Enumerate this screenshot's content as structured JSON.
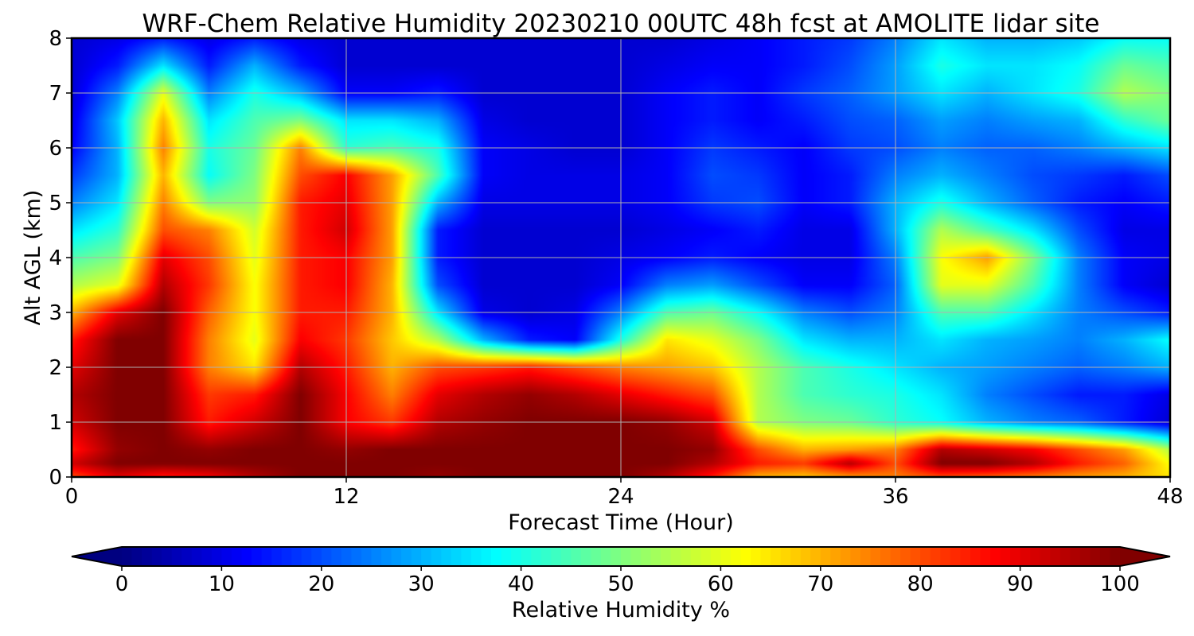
{
  "chart_data": {
    "type": "heatmap",
    "title": "WRF-Chem Relative Humidity 20230210 00UTC 48h fcst at AMOLITE lidar site",
    "xlabel": "Forecast Time (Hour)",
    "ylabel": "Alt AGL (km)",
    "xlim": [
      0,
      48
    ],
    "ylim": [
      0,
      8
    ],
    "xticks": [
      0,
      12,
      24,
      36,
      48
    ],
    "yticks": [
      0,
      1,
      2,
      3,
      4,
      5,
      6,
      7,
      8
    ],
    "grid": true,
    "colormap": "jet",
    "colorbar": {
      "label": "Relative Humidity %",
      "range": [
        0,
        100
      ],
      "ticks": [
        0,
        10,
        20,
        30,
        40,
        50,
        60,
        70,
        80,
        90,
        100
      ],
      "extend": "both",
      "orientation": "horizontal"
    },
    "x": [
      0,
      2,
      4,
      6,
      8,
      10,
      12,
      14,
      16,
      18,
      20,
      22,
      24,
      26,
      28,
      30,
      32,
      34,
      36,
      38,
      40,
      42,
      44,
      46,
      48
    ],
    "y": [
      0,
      0.25,
      0.5,
      1,
      1.5,
      2,
      2.5,
      3,
      3.5,
      4,
      4.5,
      5,
      5.5,
      6,
      6.5,
      7,
      7.5,
      8
    ],
    "z": [
      [
        80,
        90,
        85,
        88,
        95,
        100,
        100,
        100,
        98,
        100,
        100,
        100,
        100,
        95,
        85,
        70,
        68,
        72,
        75,
        80,
        78,
        75,
        72,
        70,
        65
      ],
      [
        92,
        100,
        100,
        100,
        100,
        100,
        100,
        100,
        100,
        100,
        100,
        100,
        100,
        100,
        95,
        85,
        82,
        95,
        80,
        100,
        100,
        95,
        85,
        78,
        62
      ],
      [
        85,
        98,
        100,
        98,
        100,
        100,
        98,
        100,
        100,
        100,
        100,
        100,
        100,
        100,
        98,
        80,
        70,
        72,
        75,
        95,
        92,
        88,
        80,
        72,
        55
      ],
      [
        92,
        100,
        100,
        85,
        92,
        100,
        88,
        82,
        95,
        98,
        100,
        100,
        100,
        98,
        92,
        55,
        50,
        48,
        42,
        38,
        30,
        25,
        22,
        15,
        8
      ],
      [
        95,
        100,
        100,
        82,
        85,
        100,
        88,
        75,
        90,
        95,
        98,
        95,
        90,
        85,
        80,
        55,
        45,
        42,
        40,
        35,
        25,
        20,
        15,
        15,
        10
      ],
      [
        90,
        100,
        100,
        75,
        65,
        95,
        85,
        70,
        80,
        82,
        85,
        80,
        75,
        72,
        68,
        55,
        45,
        40,
        35,
        30,
        28,
        25,
        22,
        25,
        30
      ],
      [
        85,
        100,
        100,
        75,
        60,
        88,
        82,
        68,
        55,
        30,
        15,
        12,
        40,
        65,
        60,
        50,
        35,
        30,
        30,
        35,
        30,
        28,
        25,
        30,
        38
      ],
      [
        70,
        90,
        100,
        78,
        62,
        85,
        85,
        70,
        35,
        10,
        8,
        10,
        25,
        45,
        48,
        38,
        25,
        20,
        25,
        45,
        45,
        35,
        25,
        20,
        15
      ],
      [
        55,
        60,
        95,
        82,
        62,
        85,
        88,
        70,
        20,
        8,
        8,
        8,
        12,
        25,
        28,
        20,
        12,
        12,
        22,
        60,
        60,
        45,
        25,
        12,
        8
      ],
      [
        45,
        50,
        90,
        80,
        60,
        85,
        88,
        72,
        15,
        8,
        8,
        8,
        10,
        12,
        15,
        12,
        10,
        10,
        25,
        62,
        72,
        50,
        25,
        12,
        10
      ],
      [
        35,
        42,
        80,
        75,
        58,
        85,
        92,
        72,
        15,
        8,
        8,
        8,
        8,
        10,
        12,
        15,
        10,
        10,
        30,
        55,
        45,
        35,
        20,
        10,
        10
      ],
      [
        25,
        35,
        75,
        50,
        52,
        85,
        90,
        72,
        30,
        10,
        10,
        10,
        10,
        12,
        18,
        20,
        12,
        15,
        30,
        40,
        30,
        22,
        15,
        12,
        15
      ],
      [
        18,
        30,
        70,
        38,
        50,
        80,
        88,
        72,
        45,
        12,
        10,
        10,
        10,
        12,
        20,
        18,
        12,
        15,
        25,
        30,
        25,
        20,
        18,
        15,
        20
      ],
      [
        12,
        30,
        75,
        40,
        48,
        75,
        42,
        45,
        40,
        12,
        10,
        8,
        8,
        12,
        18,
        15,
        12,
        18,
        20,
        25,
        22,
        22,
        25,
        30,
        35
      ],
      [
        10,
        32,
        70,
        35,
        45,
        50,
        35,
        35,
        30,
        10,
        8,
        8,
        8,
        12,
        15,
        12,
        15,
        20,
        22,
        28,
        25,
        28,
        30,
        42,
        48
      ],
      [
        8,
        25,
        60,
        25,
        40,
        30,
        12,
        12,
        15,
        8,
        8,
        8,
        8,
        12,
        15,
        12,
        18,
        22,
        28,
        35,
        30,
        35,
        40,
        55,
        50
      ],
      [
        8,
        15,
        35,
        15,
        30,
        15,
        8,
        8,
        8,
        8,
        8,
        8,
        8,
        10,
        12,
        12,
        15,
        20,
        28,
        40,
        35,
        35,
        38,
        48,
        45
      ],
      [
        8,
        10,
        15,
        10,
        15,
        10,
        8,
        8,
        8,
        8,
        8,
        8,
        8,
        8,
        10,
        12,
        15,
        18,
        25,
        35,
        30,
        30,
        32,
        38,
        38
      ]
    ]
  }
}
